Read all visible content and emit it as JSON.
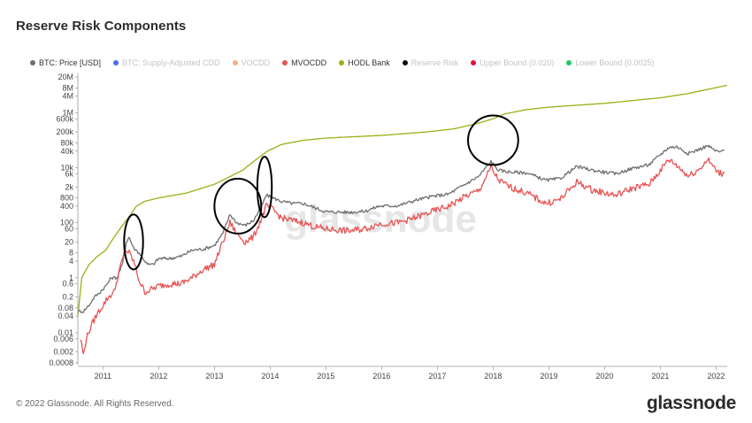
{
  "header": {
    "title": "Reserve Risk Components"
  },
  "legend": [
    {
      "label": "BTC: Price [USD]",
      "color": "#6e6e6e",
      "active": true
    },
    {
      "label": "BTC: Supply-Adjusted CDD",
      "color": "#4a6cf0",
      "active": false
    },
    {
      "label": "VOCDD",
      "color": "#f2b288",
      "active": false
    },
    {
      "label": "MVOCDD",
      "color": "#e85252",
      "active": true
    },
    {
      "label": "HODL Bank",
      "color": "#9fae14",
      "active": true
    },
    {
      "label": "Reserve Risk",
      "color": "#111111",
      "active": false
    },
    {
      "label": "Upper Bound (0.020)",
      "color": "#e0143c",
      "active": false
    },
    {
      "label": "Lower Bound (0.0025)",
      "color": "#1ec864",
      "active": false
    }
  ],
  "footer": {
    "copyright": "© 2022 Glassnode. All Rights Reserved.",
    "brand": "glassnode"
  },
  "watermark": "glassnode",
  "chart_data": {
    "type": "line",
    "title": "Reserve Risk Components",
    "y_scale": "log",
    "ylim": [
      0.0008,
      20000000
    ],
    "xlim": [
      2010.55,
      2022.2
    ],
    "y_ticks": [
      {
        "v": 0.0008,
        "label": "0.0008"
      },
      {
        "v": 0.002,
        "label": "0.002"
      },
      {
        "v": 0.006,
        "label": "0.006"
      },
      {
        "v": 0.01,
        "label": "0.01"
      },
      {
        "v": 0.04,
        "label": "0.04"
      },
      {
        "v": 0.08,
        "label": "0.08"
      },
      {
        "v": 0.2,
        "label": "0.2"
      },
      {
        "v": 0.6,
        "label": "0.6"
      },
      {
        "v": 1,
        "label": "1"
      },
      {
        "v": 4,
        "label": "4"
      },
      {
        "v": 8,
        "label": "8"
      },
      {
        "v": 20,
        "label": "20"
      },
      {
        "v": 60,
        "label": "60"
      },
      {
        "v": 100,
        "label": "100"
      },
      {
        "v": 400,
        "label": "400"
      },
      {
        "v": 800,
        "label": "800"
      },
      {
        "v": 2000,
        "label": "2k"
      },
      {
        "v": 6000,
        "label": "6k"
      },
      {
        "v": 10000,
        "label": "10k"
      },
      {
        "v": 40000,
        "label": "40k"
      },
      {
        "v": 80000,
        "label": "80k"
      },
      {
        "v": 200000,
        "label": "200k"
      },
      {
        "v": 600000,
        "label": "600k"
      },
      {
        "v": 1000000,
        "label": "1M"
      },
      {
        "v": 4000000,
        "label": "4M"
      },
      {
        "v": 8000000,
        "label": "8M"
      },
      {
        "v": 20000000,
        "label": "20M"
      }
    ],
    "x_ticks": [
      {
        "v": 2011,
        "label": "2011"
      },
      {
        "v": 2012,
        "label": "2012"
      },
      {
        "v": 2013,
        "label": "2013"
      },
      {
        "v": 2014,
        "label": "2014"
      },
      {
        "v": 2015,
        "label": "2015"
      },
      {
        "v": 2016,
        "label": "2016"
      },
      {
        "v": 2017,
        "label": "2017"
      },
      {
        "v": 2018,
        "label": "2018"
      },
      {
        "v": 2019,
        "label": "2019"
      },
      {
        "v": 2020,
        "label": "2020"
      },
      {
        "v": 2021,
        "label": "2021"
      },
      {
        "v": 2022,
        "label": "2022"
      }
    ],
    "series": [
      {
        "name": "HODL Bank",
        "color": "#9fae14",
        "points": [
          [
            2010.55,
            0.04
          ],
          [
            2010.62,
            1
          ],
          [
            2010.75,
            3
          ],
          [
            2010.9,
            6
          ],
          [
            2011.05,
            10
          ],
          [
            2011.2,
            30
          ],
          [
            2011.35,
            80
          ],
          [
            2011.5,
            200
          ],
          [
            2011.6,
            400
          ],
          [
            2011.75,
            600
          ],
          [
            2012.0,
            800
          ],
          [
            2012.5,
            1200
          ],
          [
            2013.0,
            2500
          ],
          [
            2013.3,
            5000
          ],
          [
            2013.5,
            8000
          ],
          [
            2013.75,
            20000
          ],
          [
            2013.95,
            40000
          ],
          [
            2014.2,
            70000
          ],
          [
            2014.6,
            100000
          ],
          [
            2015.0,
            120000
          ],
          [
            2016.0,
            150000
          ],
          [
            2016.8,
            200000
          ],
          [
            2017.3,
            260000
          ],
          [
            2017.7,
            400000
          ],
          [
            2018.0,
            600000
          ],
          [
            2018.2,
            900000
          ],
          [
            2018.6,
            1300000
          ],
          [
            2019.0,
            1600000
          ],
          [
            2020.0,
            2200000
          ],
          [
            2021.0,
            3500000
          ],
          [
            2021.5,
            5000000
          ],
          [
            2022.2,
            10000000
          ]
        ]
      },
      {
        "name": "BTC: Price [USD]",
        "color": "#6e6e6e",
        "points": [
          [
            2010.55,
            0.06
          ],
          [
            2010.65,
            0.06
          ],
          [
            2010.75,
            0.1
          ],
          [
            2010.85,
            0.2
          ],
          [
            2010.95,
            0.3
          ],
          [
            2011.05,
            0.5
          ],
          [
            2011.15,
            1
          ],
          [
            2011.25,
            1
          ],
          [
            2011.35,
            3
          ],
          [
            2011.42,
            20
          ],
          [
            2011.47,
            30
          ],
          [
            2011.55,
            12
          ],
          [
            2011.65,
            8
          ],
          [
            2011.8,
            3
          ],
          [
            2011.9,
            3
          ],
          [
            2012.0,
            5
          ],
          [
            2012.2,
            5
          ],
          [
            2012.4,
            6
          ],
          [
            2012.6,
            10
          ],
          [
            2012.8,
            11
          ],
          [
            2013.0,
            15
          ],
          [
            2013.15,
            40
          ],
          [
            2013.28,
            200
          ],
          [
            2013.4,
            100
          ],
          [
            2013.55,
            80
          ],
          [
            2013.7,
            120
          ],
          [
            2013.85,
            400
          ],
          [
            2013.93,
            1000
          ],
          [
            2014.05,
            800
          ],
          [
            2014.2,
            600
          ],
          [
            2014.4,
            500
          ],
          [
            2014.6,
            500
          ],
          [
            2014.8,
            350
          ],
          [
            2015.0,
            250
          ],
          [
            2015.4,
            240
          ],
          [
            2015.7,
            260
          ],
          [
            2015.95,
            400
          ],
          [
            2016.3,
            420
          ],
          [
            2016.6,
            650
          ],
          [
            2016.9,
            900
          ],
          [
            2017.2,
            1100
          ],
          [
            2017.5,
            2500
          ],
          [
            2017.75,
            5000
          ],
          [
            2017.96,
            17000
          ],
          [
            2018.1,
            8000
          ],
          [
            2018.3,
            7000
          ],
          [
            2018.6,
            6500
          ],
          [
            2018.95,
            3500
          ],
          [
            2019.2,
            4000
          ],
          [
            2019.5,
            11000
          ],
          [
            2019.8,
            8000
          ],
          [
            2020.2,
            6000
          ],
          [
            2020.5,
            9500
          ],
          [
            2020.8,
            13000
          ],
          [
            2021.0,
            30000
          ],
          [
            2021.15,
            55000
          ],
          [
            2021.3,
            58000
          ],
          [
            2021.5,
            33000
          ],
          [
            2021.7,
            47000
          ],
          [
            2021.85,
            63000
          ],
          [
            2022.0,
            40000
          ],
          [
            2022.1,
            38000
          ],
          [
            2022.15,
            45000
          ]
        ]
      },
      {
        "name": "MVOCDD",
        "color": "#e85252",
        "points": [
          [
            2010.6,
            0.006
          ],
          [
            2010.65,
            0.0015
          ],
          [
            2010.7,
            0.006
          ],
          [
            2010.8,
            0.02
          ],
          [
            2010.9,
            0.05
          ],
          [
            2011.0,
            0.1
          ],
          [
            2011.1,
            0.2
          ],
          [
            2011.2,
            0.3
          ],
          [
            2011.3,
            2
          ],
          [
            2011.4,
            10
          ],
          [
            2011.47,
            8
          ],
          [
            2011.55,
            4
          ],
          [
            2011.65,
            0.8
          ],
          [
            2011.75,
            0.3
          ],
          [
            2011.9,
            0.4
          ],
          [
            2012.0,
            0.5
          ],
          [
            2012.2,
            0.6
          ],
          [
            2012.4,
            0.6
          ],
          [
            2012.6,
            1
          ],
          [
            2012.8,
            2
          ],
          [
            2013.0,
            3
          ],
          [
            2013.15,
            20
          ],
          [
            2013.28,
            100
          ],
          [
            2013.4,
            40
          ],
          [
            2013.55,
            20
          ],
          [
            2013.7,
            30
          ],
          [
            2013.85,
            150
          ],
          [
            2013.93,
            400
          ],
          [
            2014.05,
            300
          ],
          [
            2014.2,
            150
          ],
          [
            2014.4,
            120
          ],
          [
            2014.6,
            100
          ],
          [
            2014.8,
            70
          ],
          [
            2015.0,
            60
          ],
          [
            2015.4,
            50
          ],
          [
            2015.7,
            60
          ],
          [
            2015.95,
            90
          ],
          [
            2016.3,
            100
          ],
          [
            2016.6,
            150
          ],
          [
            2016.9,
            250
          ],
          [
            2017.2,
            400
          ],
          [
            2017.5,
            900
          ],
          [
            2017.75,
            1500
          ],
          [
            2017.96,
            10000
          ],
          [
            2018.1,
            3500
          ],
          [
            2018.3,
            2000
          ],
          [
            2018.6,
            1200
          ],
          [
            2018.95,
            500
          ],
          [
            2019.2,
            700
          ],
          [
            2019.5,
            3000
          ],
          [
            2019.8,
            1500
          ],
          [
            2020.2,
            1000
          ],
          [
            2020.5,
            1800
          ],
          [
            2020.8,
            2500
          ],
          [
            2021.0,
            8000
          ],
          [
            2021.15,
            20000
          ],
          [
            2021.3,
            12000
          ],
          [
            2021.5,
            5000
          ],
          [
            2021.7,
            9000
          ],
          [
            2021.85,
            20000
          ],
          [
            2022.0,
            8000
          ],
          [
            2022.1,
            6000
          ],
          [
            2022.15,
            6500
          ]
        ]
      }
    ],
    "annotations": [
      {
        "type": "ellipse",
        "cx": 2011.55,
        "cy": 20,
        "rx_years": 0.17,
        "ry_decades": 2.0
      },
      {
        "type": "ellipse",
        "cx": 2013.42,
        "cy": 400,
        "rx_years": 0.42,
        "ry_decades": 2.0
      },
      {
        "type": "ellipse",
        "cx": 2013.9,
        "cy": 2000,
        "rx_years": 0.13,
        "ry_decades": 2.2
      },
      {
        "type": "ellipse",
        "cx": 2018.0,
        "cy": 100000,
        "rx_years": 0.45,
        "ry_decades": 1.8
      }
    ]
  }
}
